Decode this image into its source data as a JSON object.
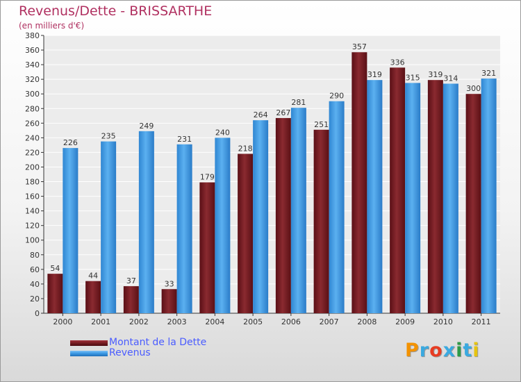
{
  "title": "Revenus/Dette - BRISSARTHE",
  "subtitle": "(en milliers d'€)",
  "logo": {
    "letters": [
      "P",
      "r",
      "o",
      "x",
      "i",
      "t",
      "i"
    ],
    "colors": [
      "#f39200",
      "#3aa9e0",
      "#e73c22",
      "#3aa9e0",
      "#2e9a48",
      "#3aa9e0",
      "#e6c410"
    ]
  },
  "colors": {
    "dette": "#7a1f24",
    "revenus": "#3d9be6",
    "title": "#b03060",
    "legend_text": "#4a5cff"
  },
  "chart_data": {
    "type": "bar",
    "categories": [
      "2000",
      "2001",
      "2002",
      "2003",
      "2004",
      "2005",
      "2006",
      "2007",
      "2008",
      "2009",
      "2010",
      "2011"
    ],
    "series": [
      {
        "name": "Montant de la Dette",
        "values": [
          54,
          44,
          37,
          33,
          179,
          218,
          267,
          251,
          357,
          336,
          319,
          300
        ]
      },
      {
        "name": "Revenus",
        "values": [
          226,
          235,
          249,
          231,
          240,
          264,
          281,
          290,
          319,
          315,
          314,
          321
        ]
      }
    ],
    "title": "Revenus/Dette - BRISSARTHE",
    "ylabel": "(en milliers d'€)",
    "ylim": [
      0,
      380
    ],
    "ytick_step": 20,
    "grid": true,
    "legend_position": "bottom-left"
  }
}
